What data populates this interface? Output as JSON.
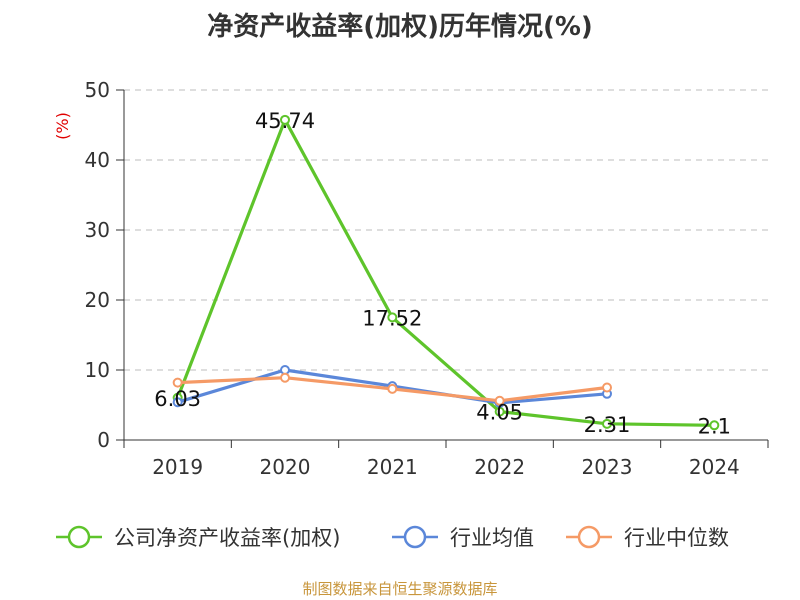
{
  "chart_data": {
    "type": "line",
    "title": "净资产收益率(加权)历年情况(%)",
    "ylabel": "(%)",
    "xlabel": "",
    "ylim": [
      0,
      50
    ],
    "yticks": [
      0,
      10,
      20,
      30,
      40,
      50
    ],
    "grid": true,
    "legend_position": "bottom",
    "categories": [
      "2019",
      "2020",
      "2021",
      "2022",
      "2023",
      "2024"
    ],
    "series": [
      {
        "name": "公司净资产收益率(加权)",
        "color": "#5ec42b",
        "values": [
          6.03,
          45.74,
          17.52,
          4.05,
          2.31,
          2.1
        ],
        "labels": [
          "6.03",
          "45.74",
          "17.52",
          "4.05",
          "2.31",
          "2.1"
        ]
      },
      {
        "name": "行业均值",
        "color": "#5b87d9",
        "values": [
          5.4,
          10.0,
          7.7,
          5.3,
          6.6,
          null
        ]
      },
      {
        "name": "行业中位数",
        "color": "#f59a66",
        "values": [
          8.2,
          8.9,
          7.3,
          5.6,
          7.5,
          null
        ]
      }
    ]
  },
  "footer": {
    "source": "制图数据来自恒生聚源数据库"
  }
}
